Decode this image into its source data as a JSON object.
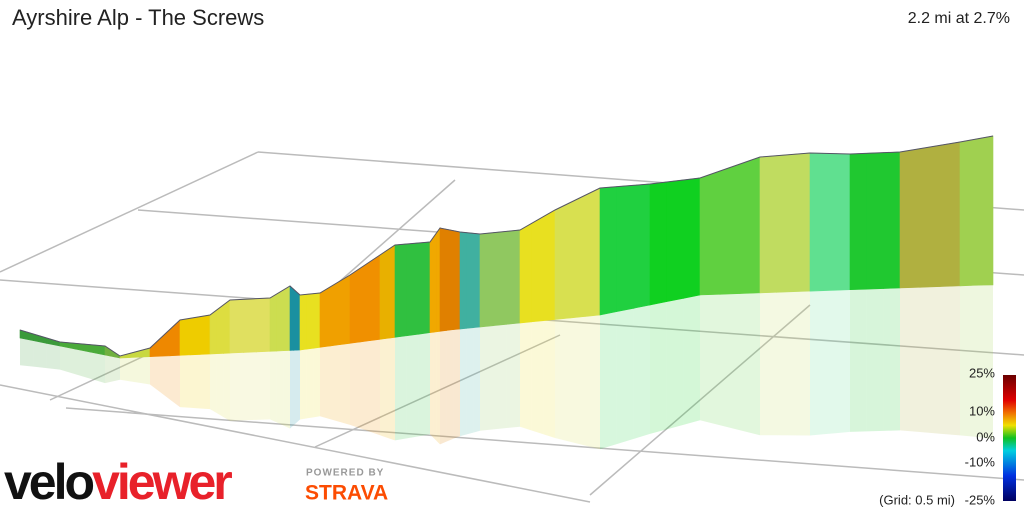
{
  "header": {
    "title": "Ayrshire Alp - The Screws",
    "summary": "2.2 mi at 2.7%"
  },
  "legend": {
    "labels": [
      "25%",
      "10%",
      "0%",
      "-10%",
      "-25%"
    ],
    "grid_note": "(Grid: 0.5 mi)"
  },
  "logo": {
    "part1": "velo",
    "part2": "viewer",
    "powered_by": "POWERED BY",
    "strava": "STRAVA"
  }
}
